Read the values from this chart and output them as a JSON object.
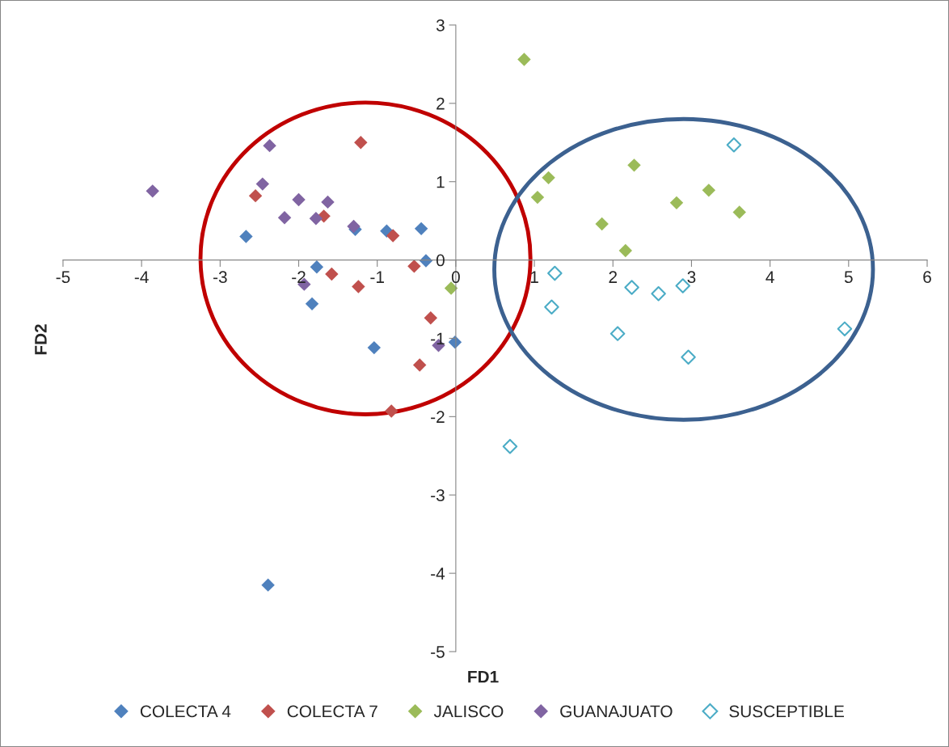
{
  "chart_data": {
    "type": "scatter",
    "xlabel": "FD1",
    "ylabel": "FD2",
    "xlim": [
      -5,
      6
    ],
    "xticks": [
      -5,
      -4,
      -3,
      -2,
      -1,
      0,
      1,
      2,
      3,
      4,
      5,
      6
    ],
    "ylim": [
      -5,
      3
    ],
    "yticks": [
      -5,
      -4,
      -3,
      -2,
      -1,
      0,
      1,
      2,
      3
    ],
    "grid": false,
    "legend": "bottom",
    "marker": "diamond",
    "series": [
      {
        "name": "COLECTA 4",
        "color": "#4f81bd",
        "x": [
          -2.67,
          -1.77,
          -1.83,
          -1.28,
          -0.88,
          -0.44,
          -0.38,
          -1.04,
          -0.01,
          -2.39
        ],
        "values": [
          0.3,
          -0.09,
          -0.56,
          0.39,
          0.37,
          0.4,
          -0.01,
          -1.12,
          -1.05,
          -4.15
        ]
      },
      {
        "name": "COLECTA 7",
        "color": "#c0504d",
        "x": [
          -2.55,
          -1.68,
          -1.21,
          -0.8,
          -1.58,
          -1.24,
          -0.53,
          -0.32,
          -0.46,
          -0.82
        ],
        "values": [
          0.82,
          0.56,
          1.5,
          0.31,
          -0.18,
          -0.34,
          -0.08,
          -0.74,
          -1.34,
          -1.93
        ]
      },
      {
        "name": "JALISCO",
        "color": "#9bbb59",
        "x": [
          0.87,
          1.18,
          1.04,
          2.27,
          1.86,
          2.16,
          2.81,
          3.22,
          3.61,
          -0.06
        ],
        "values": [
          2.56,
          1.05,
          0.8,
          1.21,
          0.46,
          0.12,
          0.73,
          0.89,
          0.61,
          -0.36
        ]
      },
      {
        "name": "GUANAJUATO",
        "color": "#8064a2",
        "x": [
          -3.86,
          -2.37,
          -2.46,
          -2.0,
          -1.63,
          -2.18,
          -1.78,
          -1.3,
          -1.93,
          -0.22
        ],
        "values": [
          0.88,
          1.46,
          0.97,
          0.77,
          0.74,
          0.54,
          0.53,
          0.43,
          -0.31,
          -1.09
        ]
      },
      {
        "name": "SUSCEPTIBLE",
        "color": "#4bacc6",
        "x": [
          1.26,
          2.24,
          2.58,
          2.89,
          1.22,
          2.06,
          2.96,
          3.54,
          4.95,
          0.69
        ],
        "values": [
          -0.17,
          -0.35,
          -0.43,
          -0.33,
          -0.6,
          -0.94,
          -1.24,
          1.47,
          -0.88,
          -2.38
        ]
      }
    ]
  }
}
